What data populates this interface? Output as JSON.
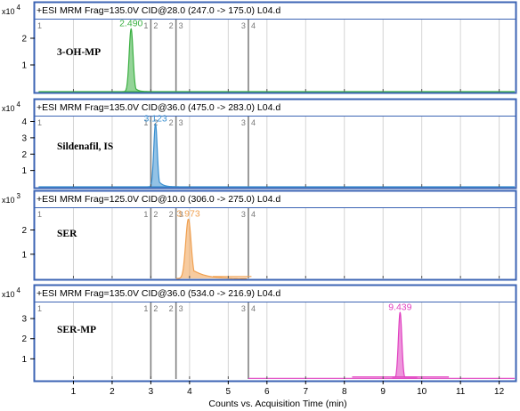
{
  "chart_data": {
    "type": "line",
    "xlabel": "Counts vs. Acquisition Time (min)",
    "xlim": [
      0,
      12.4
    ],
    "x_ticks": [
      1,
      2,
      3,
      4,
      5,
      6,
      7,
      8,
      9,
      10,
      11,
      12
    ],
    "segment_markers": [
      {
        "x": 3.0,
        "left_label": "1",
        "right_label": "2"
      },
      {
        "x": 3.65,
        "left_label": "2",
        "right_label": "3"
      },
      {
        "x": 5.52,
        "left_label": "3",
        "right_label": "4"
      }
    ],
    "start_label": "1",
    "panels": [
      {
        "header": "+ESI MRM Frag=135.0V CID@28.0 (247.0 -> 175.0) L04.d",
        "compound": "3-OH-MP",
        "exponent_base": "x10",
        "exponent": "4",
        "ylim": [
          0,
          2.7
        ],
        "y_ticks": [
          1,
          2
        ],
        "color": "#3cb043",
        "peak_label": "2.490",
        "peak_time": 2.49,
        "peak_height": 2.35,
        "peak_width": 0.05,
        "tail": 0.08,
        "baseline": {
          "from": 0.1,
          "to": 12.4,
          "level": 0.0
        }
      },
      {
        "header": "+ESI MRM Frag=135.0V CID@36.0 (475.0 -> 283.0) L04.d",
        "compound": "Sildenafil, IS",
        "exponent_base": "x10",
        "exponent": "4",
        "ylim": [
          0,
          4.3
        ],
        "y_ticks": [
          1,
          2,
          3,
          4
        ],
        "color": "#3a8fd0",
        "peak_label": "3.123",
        "peak_time": 3.12,
        "peak_height": 3.85,
        "peak_width": 0.045,
        "tail": 0.1,
        "baseline": {
          "from": 0.1,
          "to": 12.4,
          "level": 0.0
        }
      },
      {
        "header": "+ESI MRM Frag=125.0V CID@10.0 (306.0 -> 275.0) L04.d",
        "compound": "SER",
        "exponent_base": "x10",
        "exponent": "3",
        "ylim": [
          0,
          2.9
        ],
        "y_ticks": [
          1,
          2
        ],
        "color": "#f0a050",
        "peak_label": "3.973",
        "peak_time": 3.97,
        "peak_height": 2.45,
        "peak_width": 0.07,
        "tail": 0.3,
        "baseline": {
          "from": 4.6,
          "to": 5.6,
          "level": 0.08
        }
      },
      {
        "header": "+ESI MRM Frag=135.0V CID@36.0 (534.0 -> 216.9) L04.d",
        "compound": "SER-MP",
        "exponent_base": "x10",
        "exponent": "4",
        "ylim": [
          0,
          3.8
        ],
        "y_ticks": [
          1,
          2,
          3
        ],
        "color": "#e040c0",
        "peak_label": "9.439",
        "peak_time": 9.44,
        "peak_height": 3.3,
        "peak_width": 0.045,
        "tail": 0.06,
        "baseline": {
          "from": 5.52,
          "to": 12.4,
          "level": 0.03
        },
        "raised_baseline": {
          "from": 8.2,
          "to": 10.7,
          "level": 0.1
        }
      }
    ]
  }
}
